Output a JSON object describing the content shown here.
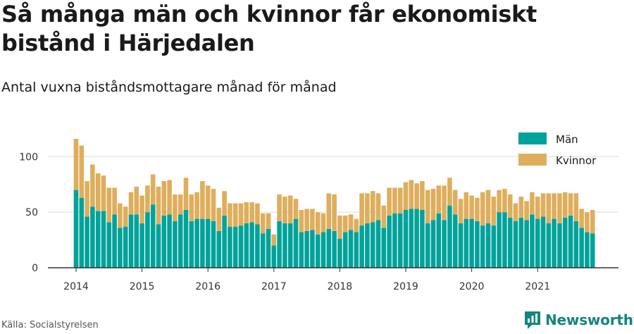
{
  "title": "Så många män och kvinnor får ekonomiskt bistånd i Härjedalen",
  "subtitle": "Antal vuxna biståndsmottagare månad för månad",
  "source": "Källa: Socialstyrelsen",
  "brand": {
    "name": "Newsworthy",
    "icon": "newsworthy-logo-icon",
    "color": "#14857c"
  },
  "chart_data": {
    "type": "bar",
    "stacked": true,
    "start_month": "2014-01",
    "ylim": [
      0,
      120
    ],
    "yticks": [
      0,
      50,
      100
    ],
    "xtick_labels": [
      "2014",
      "2015",
      "2016",
      "2017",
      "2018",
      "2019",
      "2020",
      "2021"
    ],
    "grid": true,
    "legend_position": "top-right",
    "series": [
      {
        "name": "Män",
        "color": "#00a29a",
        "values": [
          70,
          63,
          46,
          55,
          51,
          51,
          41,
          48,
          36,
          37,
          48,
          48,
          40,
          50,
          57,
          39,
          47,
          48,
          42,
          48,
          52,
          42,
          44,
          44,
          44,
          42,
          33,
          47,
          37,
          37,
          38,
          40,
          41,
          39,
          31,
          35,
          20,
          42,
          40,
          40,
          44,
          32,
          33,
          34,
          30,
          32,
          35,
          33,
          26,
          32,
          34,
          32,
          38,
          40,
          41,
          43,
          36,
          47,
          49,
          49,
          52,
          53,
          53,
          52,
          40,
          43,
          49,
          43,
          56,
          48,
          40,
          44,
          44,
          42,
          38,
          40,
          38,
          50,
          50,
          45,
          42,
          45,
          43,
          48,
          44,
          46,
          40,
          44,
          40,
          45,
          47,
          42,
          36,
          32,
          31
        ]
      },
      {
        "name": "Kvinnor",
        "color": "#deae5c",
        "values": [
          46,
          47,
          32,
          38,
          34,
          32,
          31,
          24,
          22,
          18,
          20,
          25,
          25,
          24,
          27,
          34,
          31,
          31,
          24,
          18,
          29,
          24,
          24,
          34,
          30,
          29,
          21,
          22,
          21,
          21,
          20,
          19,
          18,
          19,
          18,
          14,
          10,
          24,
          24,
          25,
          18,
          20,
          20,
          19,
          20,
          17,
          32,
          33,
          21,
          15,
          14,
          12,
          29,
          27,
          28,
          24,
          20,
          25,
          23,
          23,
          25,
          26,
          23,
          26,
          30,
          28,
          25,
          31,
          25,
          22,
          22,
          24,
          21,
          21,
          30,
          30,
          26,
          20,
          21,
          21,
          16,
          19,
          17,
          20,
          20,
          21,
          27,
          23,
          27,
          23,
          20,
          25,
          17,
          18,
          21
        ]
      }
    ]
  }
}
